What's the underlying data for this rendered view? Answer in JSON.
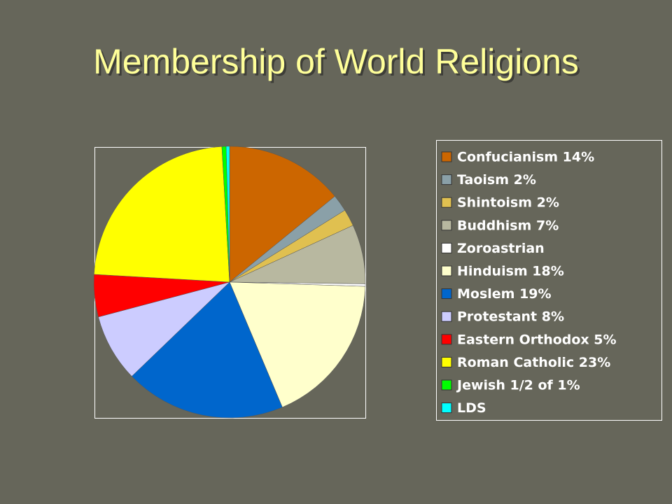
{
  "chart_data": {
    "type": "pie",
    "title": "Membership of World Religions",
    "categories": [
      "Confucianism 14%",
      "Taoism 2%",
      "Shintoism 2%",
      "Buddhism 7%",
      "Zoroastrian",
      "Hinduism 18%",
      "Moslem 19%",
      "Protestant 8%",
      "Eastern Orthodox 5%",
      "Roman Catholic 23%",
      "Jewish 1/2 of 1%",
      "LDS"
    ],
    "values": [
      14,
      2,
      2,
      7,
      0.3,
      18,
      19,
      8,
      5,
      23,
      0.5,
      0.4
    ],
    "colors": [
      "#cc6600",
      "#8aa0a8",
      "#e0c050",
      "#b8b8a0",
      "#ffffff",
      "#ffffcc",
      "#0066cc",
      "#ccccff",
      "#ff0000",
      "#ffff00",
      "#00ff00",
      "#00ffff"
    ]
  }
}
